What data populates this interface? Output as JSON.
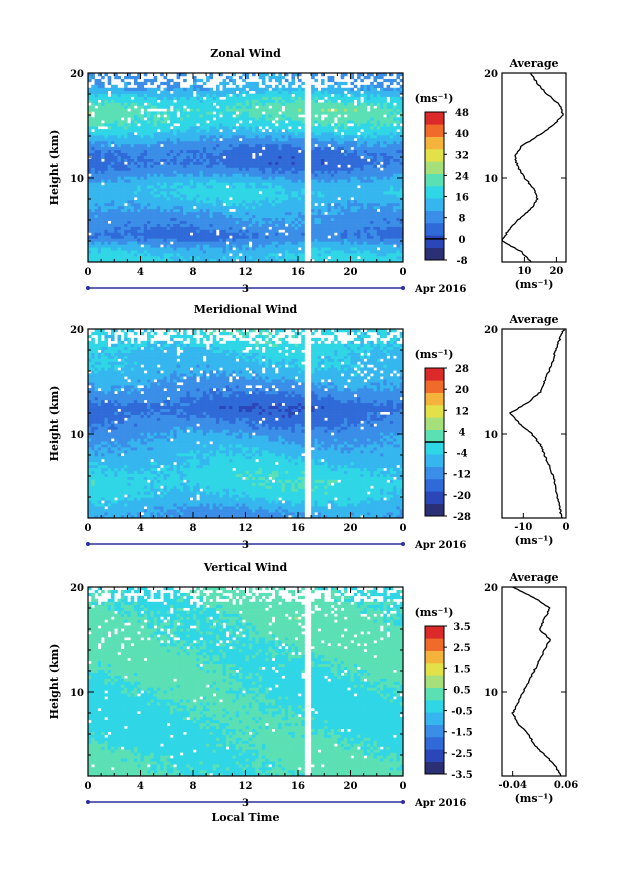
{
  "figure": {
    "xlabel_bottom": "Local Time",
    "date_label": "Apr 2016",
    "day_label": "3"
  },
  "colors": {
    "scale": [
      "#2b2f73",
      "#2a46b8",
      "#2f6ad8",
      "#3a8ee8",
      "#35b6ee",
      "#2fd6e6",
      "#5be0b4",
      "#a6e07a",
      "#e3e14a",
      "#f4b33a",
      "#f06a2a",
      "#dc2a2a"
    ],
    "missing": "#ffffff"
  },
  "chart_data": [
    {
      "type": "heatmap",
      "title": "Zonal Wind",
      "ylabel": "Height (km)",
      "xlabel": "",
      "units": "(ms⁻¹)",
      "x_range": [
        0,
        24
      ],
      "x_ticks": [
        "0",
        "4",
        "8",
        "12",
        "16",
        "20",
        "0"
      ],
      "y_range": [
        2,
        20
      ],
      "y_ticks": [
        "10",
        "20"
      ],
      "colorbar_range": [
        -8,
        48
      ],
      "colorbar_ticks": [
        "-8",
        "0",
        "8",
        "16",
        "24",
        "32",
        "40",
        "48"
      ],
      "contour_level": 0,
      "profile_mean": [
        2,
        20
      ],
      "gap_time": [
        16.6,
        17.1
      ],
      "bands": [
        {
          "height": 2.5,
          "value": 16
        },
        {
          "height": 3.5,
          "value": 12
        },
        {
          "height": 4.5,
          "value": 5
        },
        {
          "height": 5.5,
          "value": 8
        },
        {
          "height": 6.5,
          "value": 10
        },
        {
          "height": 7.5,
          "value": 13
        },
        {
          "height": 8.5,
          "value": 16
        },
        {
          "height": 9.5,
          "value": 14
        },
        {
          "height": 10.5,
          "value": 8
        },
        {
          "height": 11.5,
          "value": 4
        },
        {
          "height": 12.5,
          "value": 5
        },
        {
          "height": 13.5,
          "value": 10
        },
        {
          "height": 14.5,
          "value": 16
        },
        {
          "height": 15.5,
          "value": 20
        },
        {
          "height": 16.5,
          "value": 22
        },
        {
          "height": 17.5,
          "value": 18
        },
        {
          "height": 18.5,
          "value": 12
        },
        {
          "height": 19.5,
          "value": 10
        }
      ]
    },
    {
      "type": "line",
      "title": "Average",
      "units": "(ms⁻¹)",
      "x_range": [
        3,
        23
      ],
      "x_ticks": [
        "10",
        "20"
      ],
      "y_range": [
        2,
        20
      ],
      "y_ticks": [
        "10",
        "20"
      ],
      "y": [
        2,
        3,
        4,
        5,
        6,
        7,
        8,
        9,
        10,
        11,
        12,
        13,
        14,
        15,
        16,
        17,
        18,
        19,
        20
      ],
      "x": [
        12,
        9,
        3,
        5,
        8,
        12,
        14,
        13,
        10,
        8,
        7,
        9,
        14,
        19,
        22,
        21,
        17,
        14,
        12
      ]
    },
    {
      "type": "heatmap",
      "title": "Meridional Wind",
      "ylabel": "Height (km)",
      "xlabel": "",
      "units": "(ms⁻¹)",
      "x_range": [
        0,
        24
      ],
      "x_ticks": [
        "0",
        "4",
        "8",
        "12",
        "16",
        "20",
        "0"
      ],
      "y_range": [
        2,
        20
      ],
      "y_ticks": [
        "10",
        "20"
      ],
      "colorbar_range": [
        -28,
        28
      ],
      "colorbar_ticks": [
        "-28",
        "-20",
        "-12",
        "-4",
        "4",
        "12",
        "20",
        "28"
      ],
      "contour_level": 0,
      "gap_time": [
        16.6,
        17.1
      ],
      "bands": [
        {
          "height": 2.5,
          "value": -10
        },
        {
          "height": 3.5,
          "value": -6
        },
        {
          "height": 4.5,
          "value": -3
        },
        {
          "height": 5.5,
          "value": -2
        },
        {
          "height": 6.5,
          "value": -3
        },
        {
          "height": 7.5,
          "value": -5
        },
        {
          "height": 8.5,
          "value": -7
        },
        {
          "height": 9.5,
          "value": -9
        },
        {
          "height": 10.5,
          "value": -12
        },
        {
          "height": 11.5,
          "value": -15
        },
        {
          "height": 12.5,
          "value": -17
        },
        {
          "height": 13.5,
          "value": -14
        },
        {
          "height": 14.5,
          "value": -11
        },
        {
          "height": 15.5,
          "value": -8
        },
        {
          "height": 16.5,
          "value": -6
        },
        {
          "height": 17.5,
          "value": -5
        },
        {
          "height": 18.5,
          "value": -3
        },
        {
          "height": 19.5,
          "value": -2
        }
      ]
    },
    {
      "type": "line",
      "title": "Average",
      "units": "(ms⁻¹)",
      "x_range": [
        -15,
        0
      ],
      "x_ticks": [
        "-10",
        "0"
      ],
      "y_range": [
        2,
        20
      ],
      "y_ticks": [
        "10",
        "20"
      ],
      "y": [
        2,
        3,
        4,
        5,
        6,
        7,
        8,
        9,
        10,
        11,
        12,
        13,
        14,
        15,
        16,
        17,
        18,
        19,
        20
      ],
      "x": [
        -1,
        -1.5,
        -2,
        -2.5,
        -3,
        -4,
        -5,
        -6,
        -8,
        -11,
        -13,
        -9,
        -6,
        -5,
        -4,
        -3,
        -2.5,
        -1.5,
        -0.5
      ]
    },
    {
      "type": "heatmap",
      "title": "Vertical Wind",
      "ylabel": "Height (km)",
      "xlabel": "Local Time",
      "units": "(ms⁻¹)",
      "x_range": [
        0,
        24
      ],
      "x_ticks": [
        "0",
        "4",
        "8",
        "12",
        "16",
        "20",
        "0"
      ],
      "y_range": [
        2,
        20
      ],
      "y_ticks": [
        "10",
        "20"
      ],
      "colorbar_range": [
        -3.5,
        3.5
      ],
      "colorbar_ticks": [
        "-3.5",
        "-2.5",
        "-1.5",
        "-0.5",
        "0.5",
        "1.5",
        "2.5",
        "3.5"
      ],
      "gap_time": [
        16.6,
        17.1
      ],
      "bands": [
        {
          "height": 2.5,
          "value": 0.1
        },
        {
          "height": 4.5,
          "value": 0.0
        },
        {
          "height": 6.5,
          "value": -0.1
        },
        {
          "height": 8.5,
          "value": -0.1
        },
        {
          "height": 10.5,
          "value": -0.05
        },
        {
          "height": 12.5,
          "value": 0.05
        },
        {
          "height": 14.5,
          "value": 0.1
        },
        {
          "height": 16.5,
          "value": 0.15
        },
        {
          "height": 18.5,
          "value": 0.1
        },
        {
          "height": 19.5,
          "value": 0.05
        }
      ]
    },
    {
      "type": "line",
      "title": "Average",
      "units": "(ms⁻¹)",
      "x_range": [
        -0.06,
        0.06
      ],
      "x_ticks": [
        "-0.04",
        "0.06"
      ],
      "y_range": [
        2,
        20
      ],
      "y_ticks": [
        "10",
        "20"
      ],
      "y": [
        2,
        3,
        4,
        5,
        6,
        7,
        8,
        9,
        10,
        11,
        12,
        13,
        14,
        15,
        16,
        17,
        18,
        19,
        20
      ],
      "x": [
        0.05,
        0.04,
        0.02,
        0.0,
        -0.01,
        -0.03,
        -0.04,
        -0.03,
        -0.02,
        -0.01,
        0.0,
        0.01,
        0.02,
        0.03,
        0.01,
        0.02,
        0.03,
        0.0,
        -0.04
      ]
    }
  ]
}
